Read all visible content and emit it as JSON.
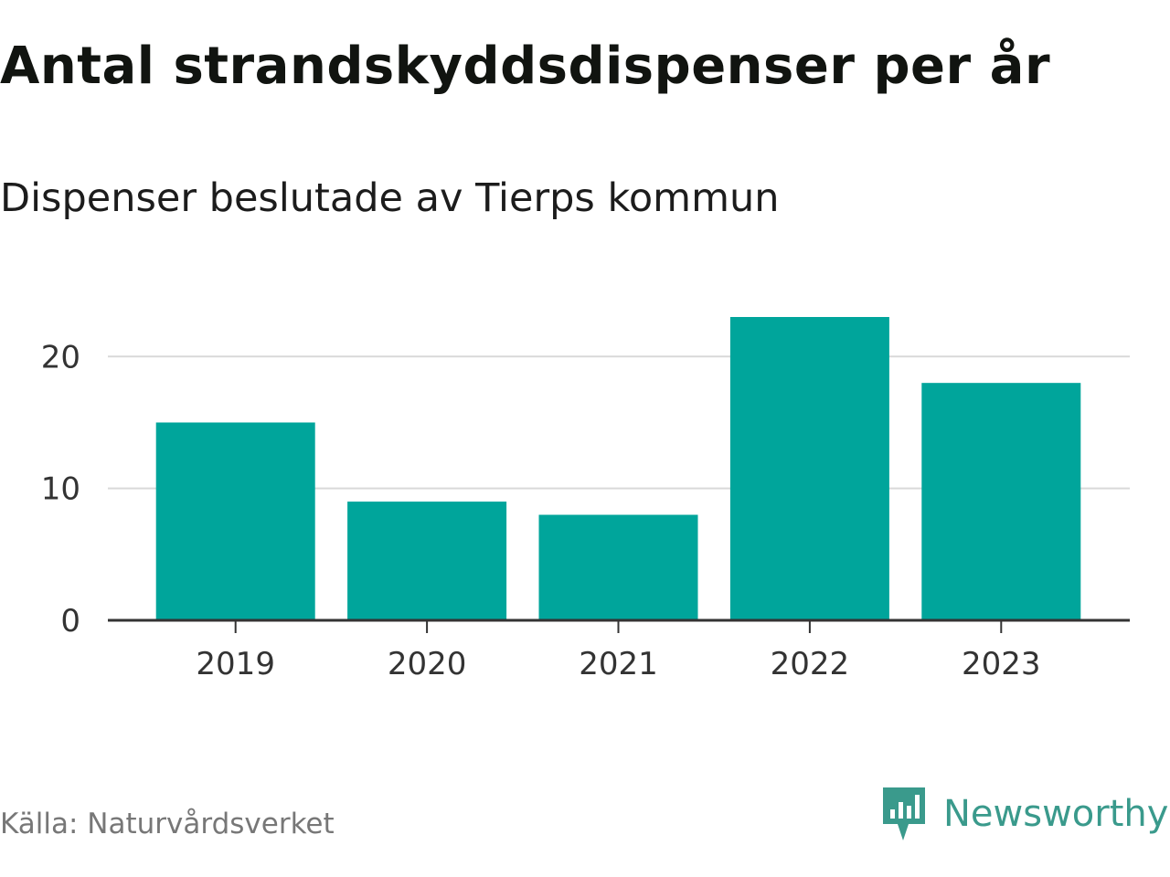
{
  "header": {
    "title": "Antal strandskyddsdispenser per år",
    "subtitle": "Dispenser beslutade av Tierps kommun"
  },
  "footer": {
    "source": "Källa: Naturvårdsverket",
    "brand": "Newsworthy",
    "brand_icon": "newsworthy-logo-icon"
  },
  "colors": {
    "bar": "#00a59b",
    "grid": "#d9d9d9",
    "axis": "#333333",
    "brand": "#3a9a8c"
  },
  "chart_data": {
    "type": "bar",
    "title": "Antal strandskyddsdispenser per år",
    "subtitle": "Dispenser beslutade av Tierps kommun",
    "categories": [
      "2019",
      "2020",
      "2021",
      "2022",
      "2023"
    ],
    "values": [
      15,
      9,
      8,
      23,
      18
    ],
    "yticks": [
      0,
      10,
      20
    ],
    "ylim": [
      0,
      23
    ],
    "xlabel": "",
    "ylabel": "",
    "grid": true
  }
}
